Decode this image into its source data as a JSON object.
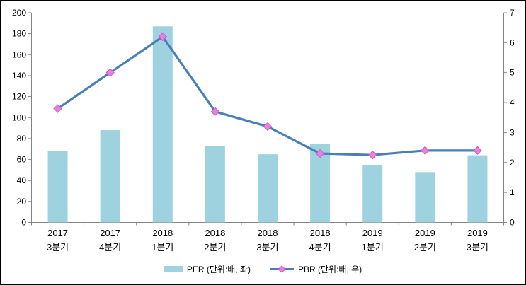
{
  "chart_data": {
    "type": "combo",
    "title": "",
    "categories": [
      [
        "2017",
        "3분기"
      ],
      [
        "2017",
        "4분기"
      ],
      [
        "2018",
        "1분기"
      ],
      [
        "2018",
        "2분기"
      ],
      [
        "2018",
        "3분기"
      ],
      [
        "2018",
        "4분기"
      ],
      [
        "2019",
        "1분기"
      ],
      [
        "2019",
        "2분기"
      ],
      [
        "2019",
        "3분기"
      ]
    ],
    "series": [
      {
        "name": "PER (단위:배, 좌)",
        "type": "bar",
        "axis": "left",
        "color": "#9DD2DE",
        "values": [
          68,
          88,
          187,
          73,
          65,
          75,
          55,
          48,
          64
        ]
      },
      {
        "name": "PBR (단위:배, 우)",
        "type": "line",
        "axis": "right",
        "color": "#4A7EBB",
        "marker": "diamond",
        "marker_color": "#F07CE0",
        "marker_edge_color": "#BE5FC8",
        "values": [
          3.8,
          5.0,
          6.2,
          3.7,
          3.2,
          2.3,
          2.25,
          2.4,
          2.4
        ]
      }
    ],
    "left_axis": {
      "min": 0,
      "max": 200,
      "ticks": [
        0,
        20,
        40,
        60,
        80,
        100,
        120,
        140,
        160,
        180,
        200
      ]
    },
    "right_axis": {
      "min": 0,
      "max": 7,
      "ticks": [
        0,
        1,
        2,
        3,
        4,
        5,
        6,
        7
      ]
    },
    "axis_color": "#848484",
    "text_color": "#000000",
    "grid": false,
    "legend_position": "bottom"
  }
}
